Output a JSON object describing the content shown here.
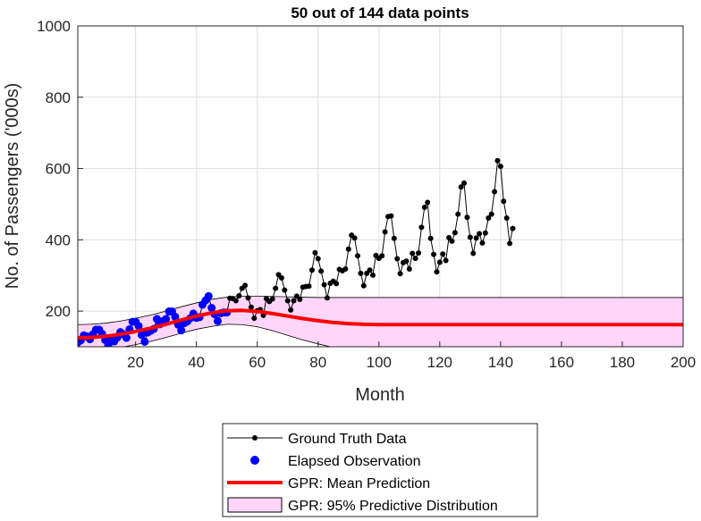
{
  "chart_data": {
    "type": "line",
    "title": "50 out of 144 data points",
    "xlabel": "Month",
    "ylabel": "No. of Passengers ('000s)",
    "xlim": [
      1,
      200
    ],
    "ylim": [
      100,
      1000
    ],
    "xticks": [
      20,
      40,
      60,
      80,
      100,
      120,
      140,
      160,
      180,
      200
    ],
    "yticks": [
      200,
      400,
      600,
      800,
      1000
    ],
    "grid": true,
    "legend_position": "bottom-outside",
    "colors": {
      "ground_truth": "#000000",
      "observation": "#0000ff",
      "mean": "#ff0000",
      "band_fill": "#ffd5fb",
      "band_edge": "#000000",
      "grid": "#dedede"
    },
    "legend": [
      {
        "label": "Ground Truth Data",
        "kind": "line-marker",
        "color": "#000000"
      },
      {
        "label": "Elapsed Observation",
        "kind": "marker",
        "color": "#0000ff"
      },
      {
        "label": "GPR: Mean Prediction",
        "kind": "line",
        "color": "#ff0000"
      },
      {
        "label": "GPR: 95% Predictive Distribution",
        "kind": "patch",
        "color": "#ffd5fb"
      }
    ],
    "ground_truth": {
      "x": [
        1,
        2,
        3,
        4,
        5,
        6,
        7,
        8,
        9,
        10,
        11,
        12,
        13,
        14,
        15,
        16,
        17,
        18,
        19,
        20,
        21,
        22,
        23,
        24,
        25,
        26,
        27,
        28,
        29,
        30,
        31,
        32,
        33,
        34,
        35,
        36,
        37,
        38,
        39,
        40,
        41,
        42,
        43,
        44,
        45,
        46,
        47,
        48,
        49,
        50,
        51,
        52,
        53,
        54,
        55,
        56,
        57,
        58,
        59,
        60,
        61,
        62,
        63,
        64,
        65,
        66,
        67,
        68,
        69,
        70,
        71,
        72,
        73,
        74,
        75,
        76,
        77,
        78,
        79,
        80,
        81,
        82,
        83,
        84,
        85,
        86,
        87,
        88,
        89,
        90,
        91,
        92,
        93,
        94,
        95,
        96,
        97,
        98,
        99,
        100,
        101,
        102,
        103,
        104,
        105,
        106,
        107,
        108,
        109,
        110,
        111,
        112,
        113,
        114,
        115,
        116,
        117,
        118,
        119,
        120,
        121,
        122,
        123,
        124,
        125,
        126,
        127,
        128,
        129,
        130,
        131,
        132,
        133,
        134,
        135,
        136,
        137,
        138,
        139,
        140,
        141,
        142,
        143,
        144
      ],
      "y": [
        112,
        118,
        132,
        129,
        121,
        135,
        148,
        148,
        136,
        119,
        104,
        118,
        115,
        126,
        141,
        135,
        125,
        149,
        170,
        170,
        158,
        133,
        114,
        140,
        145,
        150,
        178,
        163,
        172,
        178,
        199,
        199,
        184,
        162,
        146,
        166,
        171,
        180,
        193,
        181,
        183,
        218,
        230,
        242,
        209,
        191,
        172,
        194,
        196,
        196,
        236,
        235,
        229,
        243,
        264,
        272,
        237,
        211,
        180,
        201,
        204,
        188,
        235,
        227,
        234,
        264,
        302,
        293,
        259,
        229,
        203,
        229,
        242,
        233,
        267,
        269,
        270,
        315,
        364,
        347,
        312,
        274,
        237,
        278,
        284,
        277,
        317,
        313,
        318,
        374,
        413,
        405,
        355,
        306,
        271,
        306,
        315,
        301,
        356,
        348,
        355,
        422,
        465,
        467,
        404,
        347,
        305,
        336,
        340,
        318,
        362,
        348,
        363,
        435,
        491,
        505,
        404,
        359,
        310,
        337,
        360,
        342,
        406,
        396,
        420,
        472,
        548,
        559,
        463,
        407,
        362,
        405,
        417,
        391,
        419,
        461,
        472,
        535,
        622,
        606,
        508,
        461,
        390,
        432
      ]
    },
    "observations": {
      "x": [
        1,
        2,
        3,
        4,
        5,
        6,
        7,
        8,
        9,
        10,
        11,
        12,
        13,
        14,
        15,
        16,
        17,
        18,
        19,
        20,
        21,
        22,
        23,
        24,
        25,
        26,
        27,
        28,
        29,
        30,
        31,
        32,
        33,
        34,
        35,
        36,
        37,
        38,
        39,
        40,
        41,
        42,
        43,
        44,
        45,
        46,
        47,
        48,
        49,
        50
      ],
      "y": [
        112,
        118,
        132,
        129,
        121,
        135,
        148,
        148,
        136,
        119,
        104,
        118,
        115,
        126,
        141,
        135,
        125,
        149,
        170,
        170,
        158,
        133,
        114,
        140,
        145,
        150,
        178,
        163,
        172,
        178,
        199,
        199,
        184,
        162,
        146,
        166,
        171,
        180,
        193,
        181,
        183,
        218,
        230,
        242,
        209,
        191,
        172,
        194,
        196,
        196
      ]
    },
    "gpr_mean": {
      "x": [
        1,
        5,
        10,
        15,
        20,
        25,
        30,
        35,
        40,
        45,
        50,
        55,
        60,
        65,
        70,
        75,
        80,
        85,
        90,
        95,
        100,
        110,
        120,
        130,
        140,
        150,
        160,
        170,
        180,
        190,
        200
      ],
      "y": [
        125,
        126,
        129,
        135,
        143,
        152,
        163,
        175,
        186,
        195,
        201,
        202,
        199,
        193,
        186,
        179,
        173,
        168,
        165,
        163,
        162,
        162,
        162,
        162,
        162,
        162,
        162,
        162,
        162,
        162,
        162
      ]
    },
    "gpr_upper": {
      "x": [
        1,
        5,
        10,
        15,
        20,
        25,
        30,
        35,
        40,
        45,
        50,
        55,
        60,
        65,
        70,
        75,
        80,
        85,
        90,
        95,
        100,
        110,
        120,
        130,
        140,
        150,
        160,
        170,
        180,
        190,
        200
      ],
      "y": [
        162,
        163,
        166,
        172,
        180,
        189,
        200,
        212,
        223,
        233,
        239,
        242,
        242,
        241,
        240,
        239,
        238,
        238,
        238,
        238,
        238,
        238,
        238,
        238,
        238,
        238,
        238,
        238,
        238,
        238,
        238
      ]
    },
    "gpr_lower": {
      "x": [
        1,
        5,
        10,
        15,
        20,
        25,
        30,
        35,
        40,
        45,
        50,
        55,
        60,
        65,
        70,
        75,
        80,
        85,
        90,
        95,
        100,
        110,
        120,
        130,
        140,
        150,
        160,
        170,
        180,
        190,
        200
      ],
      "y": [
        88,
        89,
        92,
        98,
        106,
        115,
        126,
        138,
        149,
        157,
        163,
        162,
        156,
        145,
        132,
        119,
        108,
        98,
        92,
        88,
        86,
        86,
        86,
        86,
        86,
        86,
        86,
        86,
        86,
        86,
        86
      ]
    }
  }
}
